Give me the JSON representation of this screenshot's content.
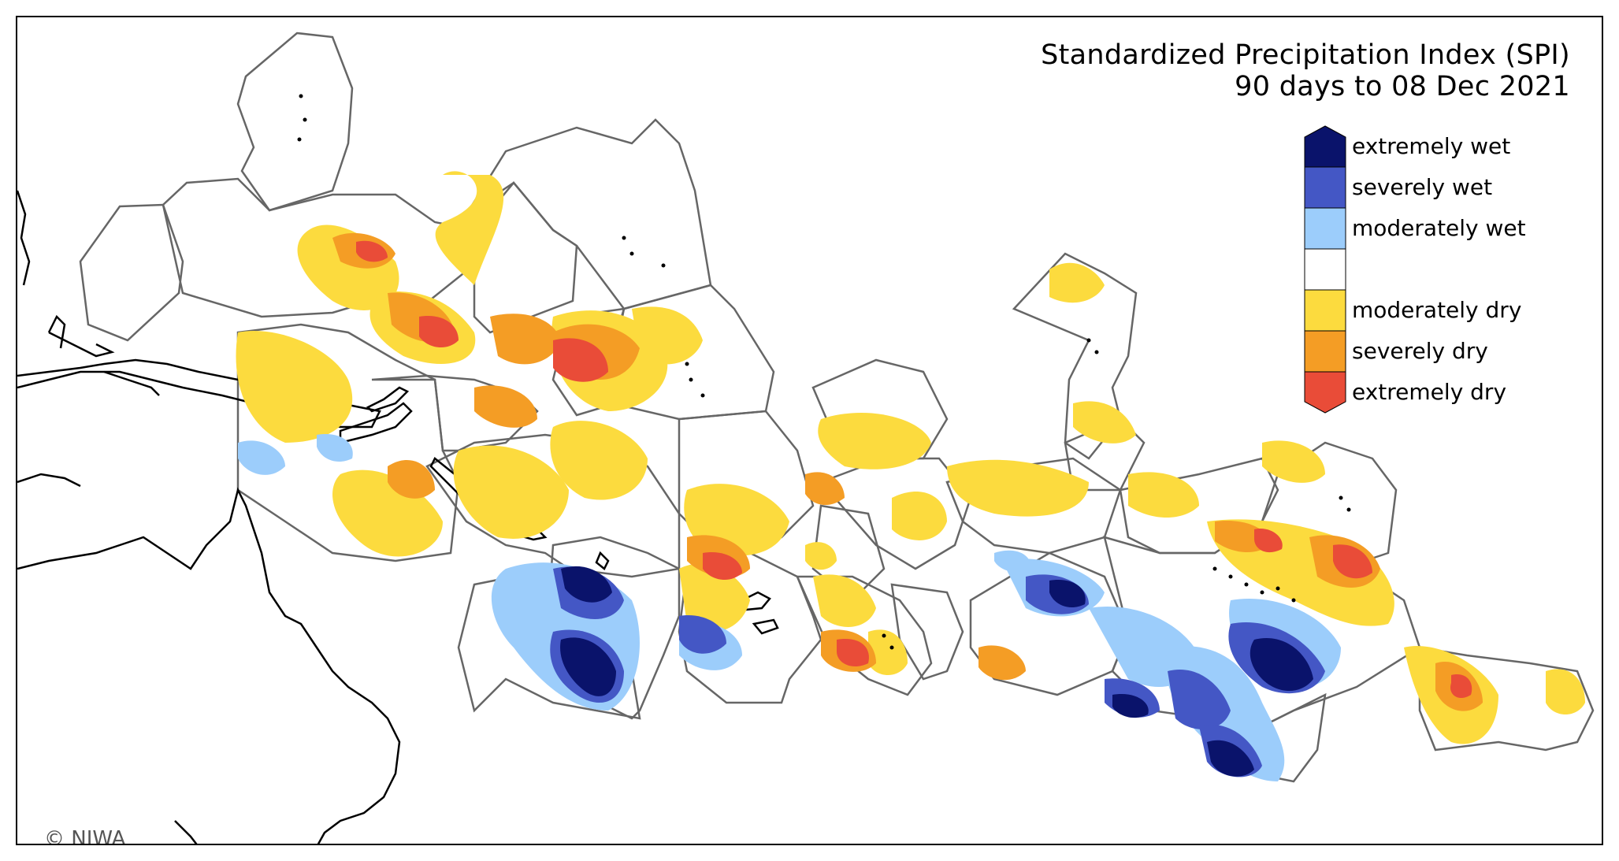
{
  "title": {
    "line1": "Standardized Precipitation Index (SPI)",
    "line2": "90 days to 08 Dec 2021"
  },
  "legend": {
    "items": [
      {
        "label": "extremely wet",
        "color": "#0a136b"
      },
      {
        "label": "severely wet",
        "color": "#4457c5"
      },
      {
        "label": "moderately wet",
        "color": "#9ccdfb"
      },
      {
        "label": "",
        "color": "#ffffff"
      },
      {
        "label": "moderately dry",
        "color": "#fcdb3e"
      },
      {
        "label": "severely dry",
        "color": "#f49d25"
      },
      {
        "label": "extremely dry",
        "color": "#e94c38"
      }
    ]
  },
  "copyright": "© NIWA",
  "colors": {
    "region_outline": "#666666",
    "coastline": "#000000"
  }
}
